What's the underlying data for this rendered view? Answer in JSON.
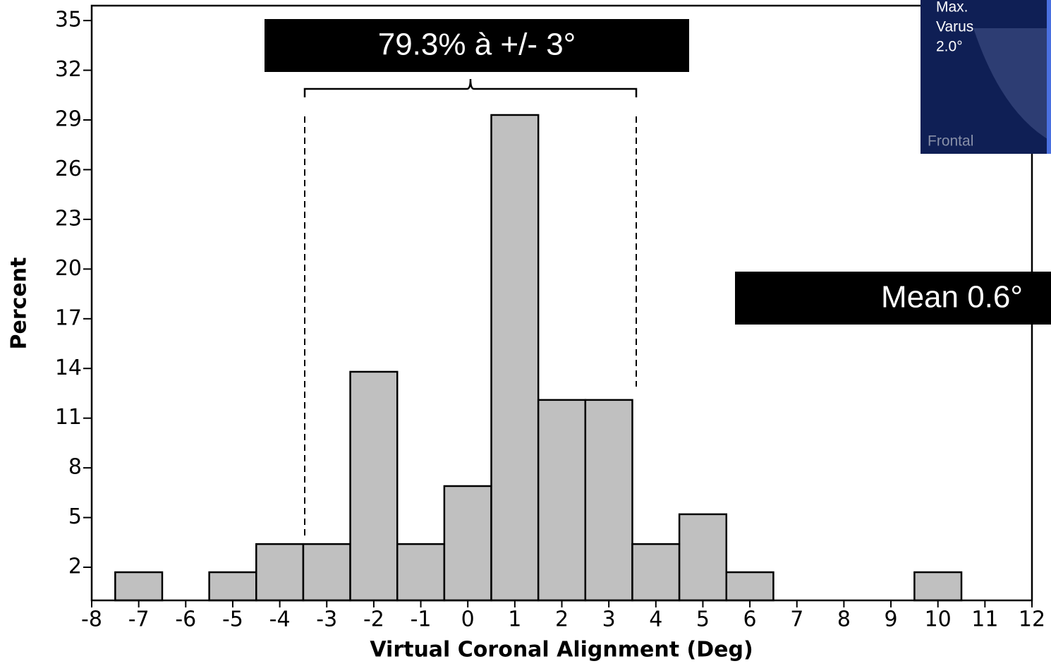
{
  "chart_data": {
    "type": "histogram",
    "x_label": "Virtual Coronal Alignment (Deg)",
    "y_label": "Percent",
    "bins": [
      -7.5,
      -6.5,
      -5.5,
      -4.5,
      -3.5,
      -2.5,
      -1.5,
      -0.5,
      0.5,
      1.5,
      2.5,
      3.5,
      4.5,
      5.5,
      6.5,
      7.5,
      8.5,
      9.5,
      10.5
    ],
    "values": [
      1.7,
      0,
      1.7,
      3.4,
      3.4,
      13.8,
      3.4,
      6.9,
      29.3,
      12.1,
      12.1,
      3.4,
      5.2,
      1.7,
      0,
      0,
      0,
      1.7
    ],
    "color": "#c0c0c0",
    "xlim": [
      -8,
      12
    ],
    "xticks": [
      -8,
      -7,
      -6,
      -5,
      -4,
      -3,
      -2,
      -1,
      0,
      1,
      2,
      3,
      4,
      5,
      6,
      7,
      8,
      9,
      10,
      11,
      12
    ],
    "ylim": [
      0,
      35.9
    ],
    "yticks": [
      2,
      5,
      8,
      11,
      14,
      17,
      20,
      23,
      26,
      29,
      32,
      35
    ],
    "annotations": [
      "79.3% à +/- 3°",
      "Mean 0.6°"
    ],
    "inset": [
      "Max.",
      "Varus",
      "2.0°",
      "Frontal"
    ]
  }
}
